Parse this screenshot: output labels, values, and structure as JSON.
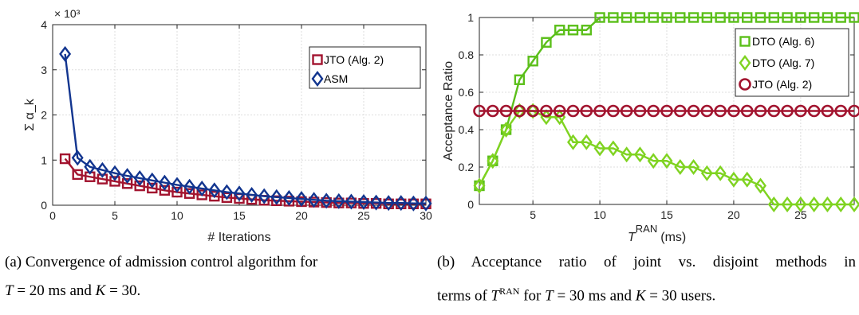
{
  "chart_data": [
    {
      "type": "line",
      "title": "",
      "xlabel": "# Iterations",
      "ylabel": "Σ α_k",
      "exponent_label": "× 10³",
      "xlim": [
        0,
        30
      ],
      "ylim": [
        0,
        4
      ],
      "xticks": [
        0,
        5,
        10,
        15,
        20,
        25,
        30
      ],
      "yticks": [
        0,
        1,
        2,
        3,
        4
      ],
      "grid": true,
      "legend_position": "top-right",
      "x": [
        1,
        2,
        3,
        4,
        5,
        6,
        7,
        8,
        9,
        10,
        11,
        12,
        13,
        14,
        15,
        16,
        17,
        18,
        19,
        20,
        21,
        22,
        23,
        24,
        25,
        26,
        27,
        28,
        29,
        30
      ],
      "series": [
        {
          "name": "JTO (Alg. 2)",
          "color": "#a2142f",
          "marker": "square",
          "values": [
            1.03,
            0.68,
            0.63,
            0.58,
            0.53,
            0.48,
            0.43,
            0.38,
            0.33,
            0.29,
            0.26,
            0.23,
            0.2,
            0.17,
            0.15,
            0.13,
            0.11,
            0.1,
            0.09,
            0.08,
            0.07,
            0.06,
            0.05,
            0.05,
            0.04,
            0.04,
            0.03,
            0.03,
            0.03,
            0.03
          ]
        },
        {
          "name": "ASM",
          "color": "#12358f",
          "marker": "diamond",
          "values": [
            3.35,
            1.05,
            0.85,
            0.78,
            0.71,
            0.65,
            0.6,
            0.55,
            0.5,
            0.45,
            0.41,
            0.37,
            0.33,
            0.29,
            0.26,
            0.23,
            0.2,
            0.18,
            0.16,
            0.14,
            0.12,
            0.1,
            0.09,
            0.08,
            0.07,
            0.06,
            0.05,
            0.05,
            0.04,
            0.04
          ]
        }
      ]
    },
    {
      "type": "line",
      "title": "",
      "xlabel": "T",
      "xlabel_sup": "RAN",
      "xlabel_unit": "(ms)",
      "ylabel": "Acceptance Ratio",
      "xlim": [
        1,
        29
      ],
      "ylim": [
        0,
        1
      ],
      "xticks": [
        5,
        10,
        15,
        20,
        25
      ],
      "yticks": [
        0,
        0.2,
        0.4,
        0.6,
        0.8,
        1
      ],
      "grid": true,
      "legend_position": "top-right",
      "x": [
        1,
        2,
        3,
        4,
        5,
        6,
        7,
        8,
        9,
        10,
        11,
        12,
        13,
        14,
        15,
        16,
        17,
        18,
        19,
        20,
        21,
        22,
        23,
        24,
        25,
        26,
        27,
        28,
        29
      ],
      "series": [
        {
          "name": "DTO (Alg. 6)",
          "color": "#5bbf1a",
          "marker": "square",
          "values": [
            0.1,
            0.233,
            0.4,
            0.667,
            0.767,
            0.867,
            0.933,
            0.933,
            0.933,
            1,
            1,
            1,
            1,
            1,
            1,
            1,
            1,
            1,
            1,
            1,
            1,
            1,
            1,
            1,
            1,
            1,
            1,
            1,
            1
          ]
        },
        {
          "name": "DTO (Alg. 7)",
          "color": "#7fd321",
          "marker": "diamond",
          "values": [
            0.1,
            0.233,
            0.4,
            0.5,
            0.5,
            0.467,
            0.467,
            0.333,
            0.333,
            0.3,
            0.3,
            0.267,
            0.267,
            0.233,
            0.233,
            0.2,
            0.2,
            0.167,
            0.167,
            0.133,
            0.133,
            0.1,
            0,
            0,
            0,
            0,
            0,
            0,
            0
          ]
        },
        {
          "name": "JTO (Alg. 2)",
          "color": "#a2142f",
          "marker": "circle",
          "values": [
            0.5,
            0.5,
            0.5,
            0.5,
            0.5,
            0.5,
            0.5,
            0.5,
            0.5,
            0.5,
            0.5,
            0.5,
            0.5,
            0.5,
            0.5,
            0.5,
            0.5,
            0.5,
            0.5,
            0.5,
            0.5,
            0.5,
            0.5,
            0.5,
            0.5,
            0.5,
            0.5,
            0.5,
            0.5
          ]
        }
      ]
    }
  ],
  "captions": {
    "a_line1": "(a) Convergence of admission control algorithm for",
    "a_line2_T": "T",
    "a_line2_mid": " = 20 ms and ",
    "a_line2_K": "K",
    "a_line2_end": " = 30.",
    "b_line1": "(b) Acceptance ratio of joint vs. disjoint methods in",
    "b_line2_pre": "terms of ",
    "b_line2_T": "T",
    "b_line2_sup": "RAN",
    "b_line2_mid": " for ",
    "b_line2_T2": "T",
    "b_line2_mid2": " = 30 ms and ",
    "b_line2_K": "K",
    "b_line2_end": " = 30 users."
  }
}
